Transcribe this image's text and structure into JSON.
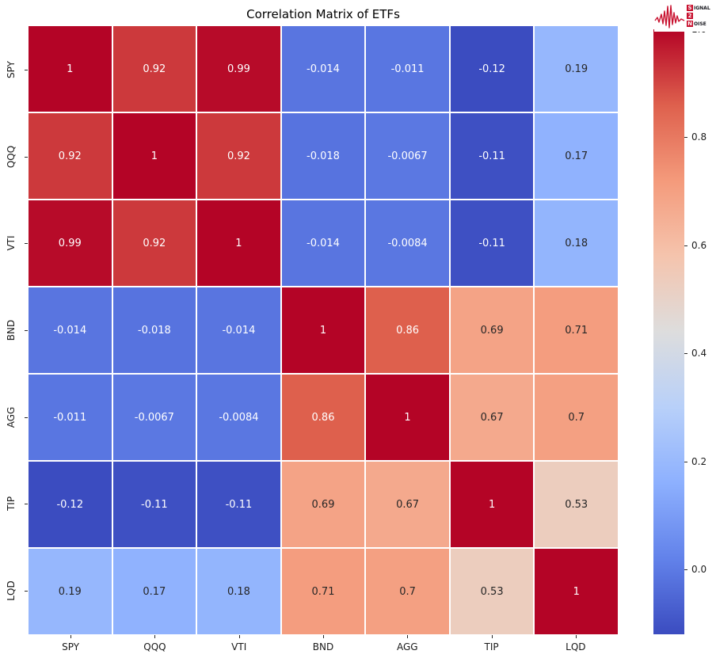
{
  "header": {
    "title": "Correlation Matrix of ETFs"
  },
  "logo": {
    "name": "signal-2-noise",
    "accent_color": "#c8102e",
    "line1_initial": "S",
    "line1_rest": "IGNAL",
    "line2_initial": "2",
    "line2_rest": "",
    "line3_initial": "N",
    "line3_rest": "OISE"
  },
  "chart_data": {
    "type": "heatmap",
    "title": "Correlation Matrix of ETFs",
    "categories": [
      "SPY",
      "QQQ",
      "VTI",
      "BND",
      "AGG",
      "TIP",
      "LQD"
    ],
    "matrix": [
      [
        1,
        0.92,
        0.99,
        -0.014,
        -0.011,
        -0.12,
        0.19
      ],
      [
        0.92,
        1,
        0.92,
        -0.018,
        -0.0067,
        -0.11,
        0.17
      ],
      [
        0.99,
        0.92,
        1,
        -0.014,
        -0.0084,
        -0.11,
        0.18
      ],
      [
        -0.014,
        -0.018,
        -0.014,
        1,
        0.86,
        0.69,
        0.71
      ],
      [
        -0.011,
        -0.0067,
        -0.0084,
        0.86,
        1,
        0.67,
        0.7
      ],
      [
        -0.12,
        -0.11,
        -0.11,
        0.69,
        0.67,
        1,
        0.53
      ],
      [
        0.19,
        0.17,
        0.18,
        0.71,
        0.7,
        0.53,
        1
      ]
    ],
    "colormap": {
      "name": "coolwarm",
      "vmin": -0.12,
      "vmax": 1.0,
      "anchors": [
        {
          "t": 0.0,
          "color": "#3B4CC0"
        },
        {
          "t": 0.125,
          "color": "#6282EA"
        },
        {
          "t": 0.25,
          "color": "#8DB0FE"
        },
        {
          "t": 0.375,
          "color": "#B8D0F9"
        },
        {
          "t": 0.5,
          "color": "#DDDDDD"
        },
        {
          "t": 0.625,
          "color": "#F5C4AD"
        },
        {
          "t": 0.75,
          "color": "#F49A7B"
        },
        {
          "t": 0.875,
          "color": "#DE604D"
        },
        {
          "t": 1.0,
          "color": "#B40426"
        }
      ]
    },
    "annotation_colors": {
      "on_dark": "#FFFFFF",
      "on_light": "#262626"
    },
    "colorbar": {
      "tick_labels": [
        "1.0",
        "0.8",
        "0.6",
        "0.4",
        "0.2",
        "0.0"
      ],
      "tick_values": [
        1.0,
        0.8,
        0.6,
        0.4,
        0.2,
        0.0
      ]
    },
    "legend_position": "right-colorbar",
    "grid": false
  }
}
